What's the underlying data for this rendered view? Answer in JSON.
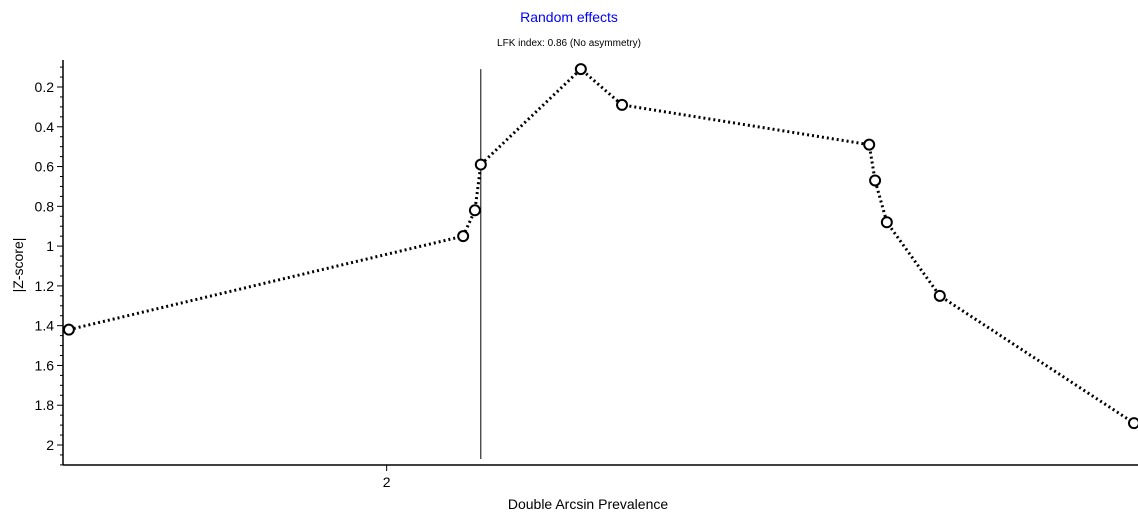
{
  "chart_data": {
    "type": "line",
    "title": "Random effects",
    "subtitle": "LFK index: 0.86 (No asymmetry)",
    "xlabel": "Double Arcsin Prevalence",
    "ylabel": "|Z-score|",
    "x_ticks": [
      2
    ],
    "y_ticks": [
      0.2,
      0.4,
      0.6,
      0.8,
      1,
      1.2,
      1.4,
      1.6,
      1.8,
      2
    ],
    "xlim": [
      1.45,
      3.27
    ],
    "ylim": [
      0.1,
      2.1
    ],
    "y_axis_inverted": true,
    "vertical_line_x": 2.16,
    "series": [
      {
        "points": [
          {
            "x": 1.46,
            "y": 1.42
          },
          {
            "x": 2.13,
            "y": 0.95
          },
          {
            "x": 2.15,
            "y": 0.82
          },
          {
            "x": 2.16,
            "y": 0.59
          },
          {
            "x": 2.33,
            "y": 0.11
          },
          {
            "x": 2.4,
            "y": 0.29
          },
          {
            "x": 2.82,
            "y": 0.49
          },
          {
            "x": 2.83,
            "y": 0.67
          },
          {
            "x": 2.85,
            "y": 0.88
          },
          {
            "x": 2.94,
            "y": 1.25
          },
          {
            "x": 3.27,
            "y": 1.89
          }
        ]
      }
    ],
    "colors": {
      "title": "#0000ff",
      "line": "#000000",
      "axis": "#000000"
    }
  }
}
